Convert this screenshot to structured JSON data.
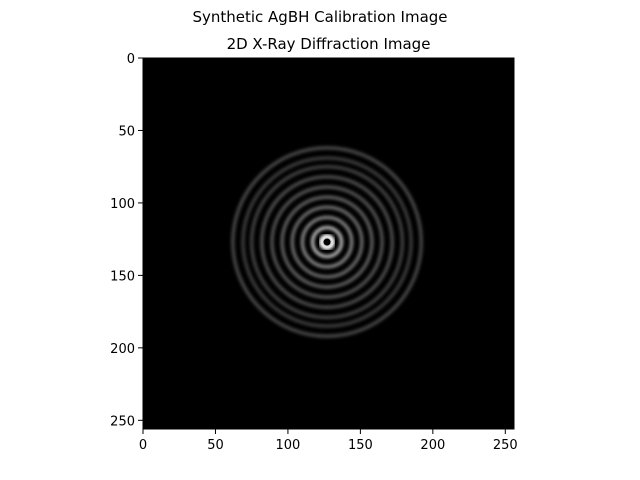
{
  "suptitle": "Synthetic AgBH Calibration Image",
  "chart_data": {
    "type": "heatmap",
    "title": "2D X-Ray Diffraction Image",
    "xlabel": "",
    "ylabel": "",
    "xlim": [
      0,
      256
    ],
    "ylim": [
      256,
      0
    ],
    "x_ticks": [
      0,
      50,
      100,
      150,
      200,
      250
    ],
    "y_ticks": [
      0,
      50,
      100,
      150,
      200,
      250
    ],
    "colormap": "gray",
    "background": "#000000",
    "beam_center": [
      127,
      127
    ],
    "rings": [
      {
        "radius": 3,
        "intensity": 1.0
      },
      {
        "radius": 10,
        "intensity": 0.75
      },
      {
        "radius": 17,
        "intensity": 0.55
      },
      {
        "radius": 24,
        "intensity": 0.45
      },
      {
        "radius": 31,
        "intensity": 0.4
      },
      {
        "radius": 38,
        "intensity": 0.35
      },
      {
        "radius": 45,
        "intensity": 0.32
      },
      {
        "radius": 52,
        "intensity": 0.28
      },
      {
        "radius": 58,
        "intensity": 0.25
      },
      {
        "radius": 65,
        "intensity": 0.3
      }
    ]
  }
}
